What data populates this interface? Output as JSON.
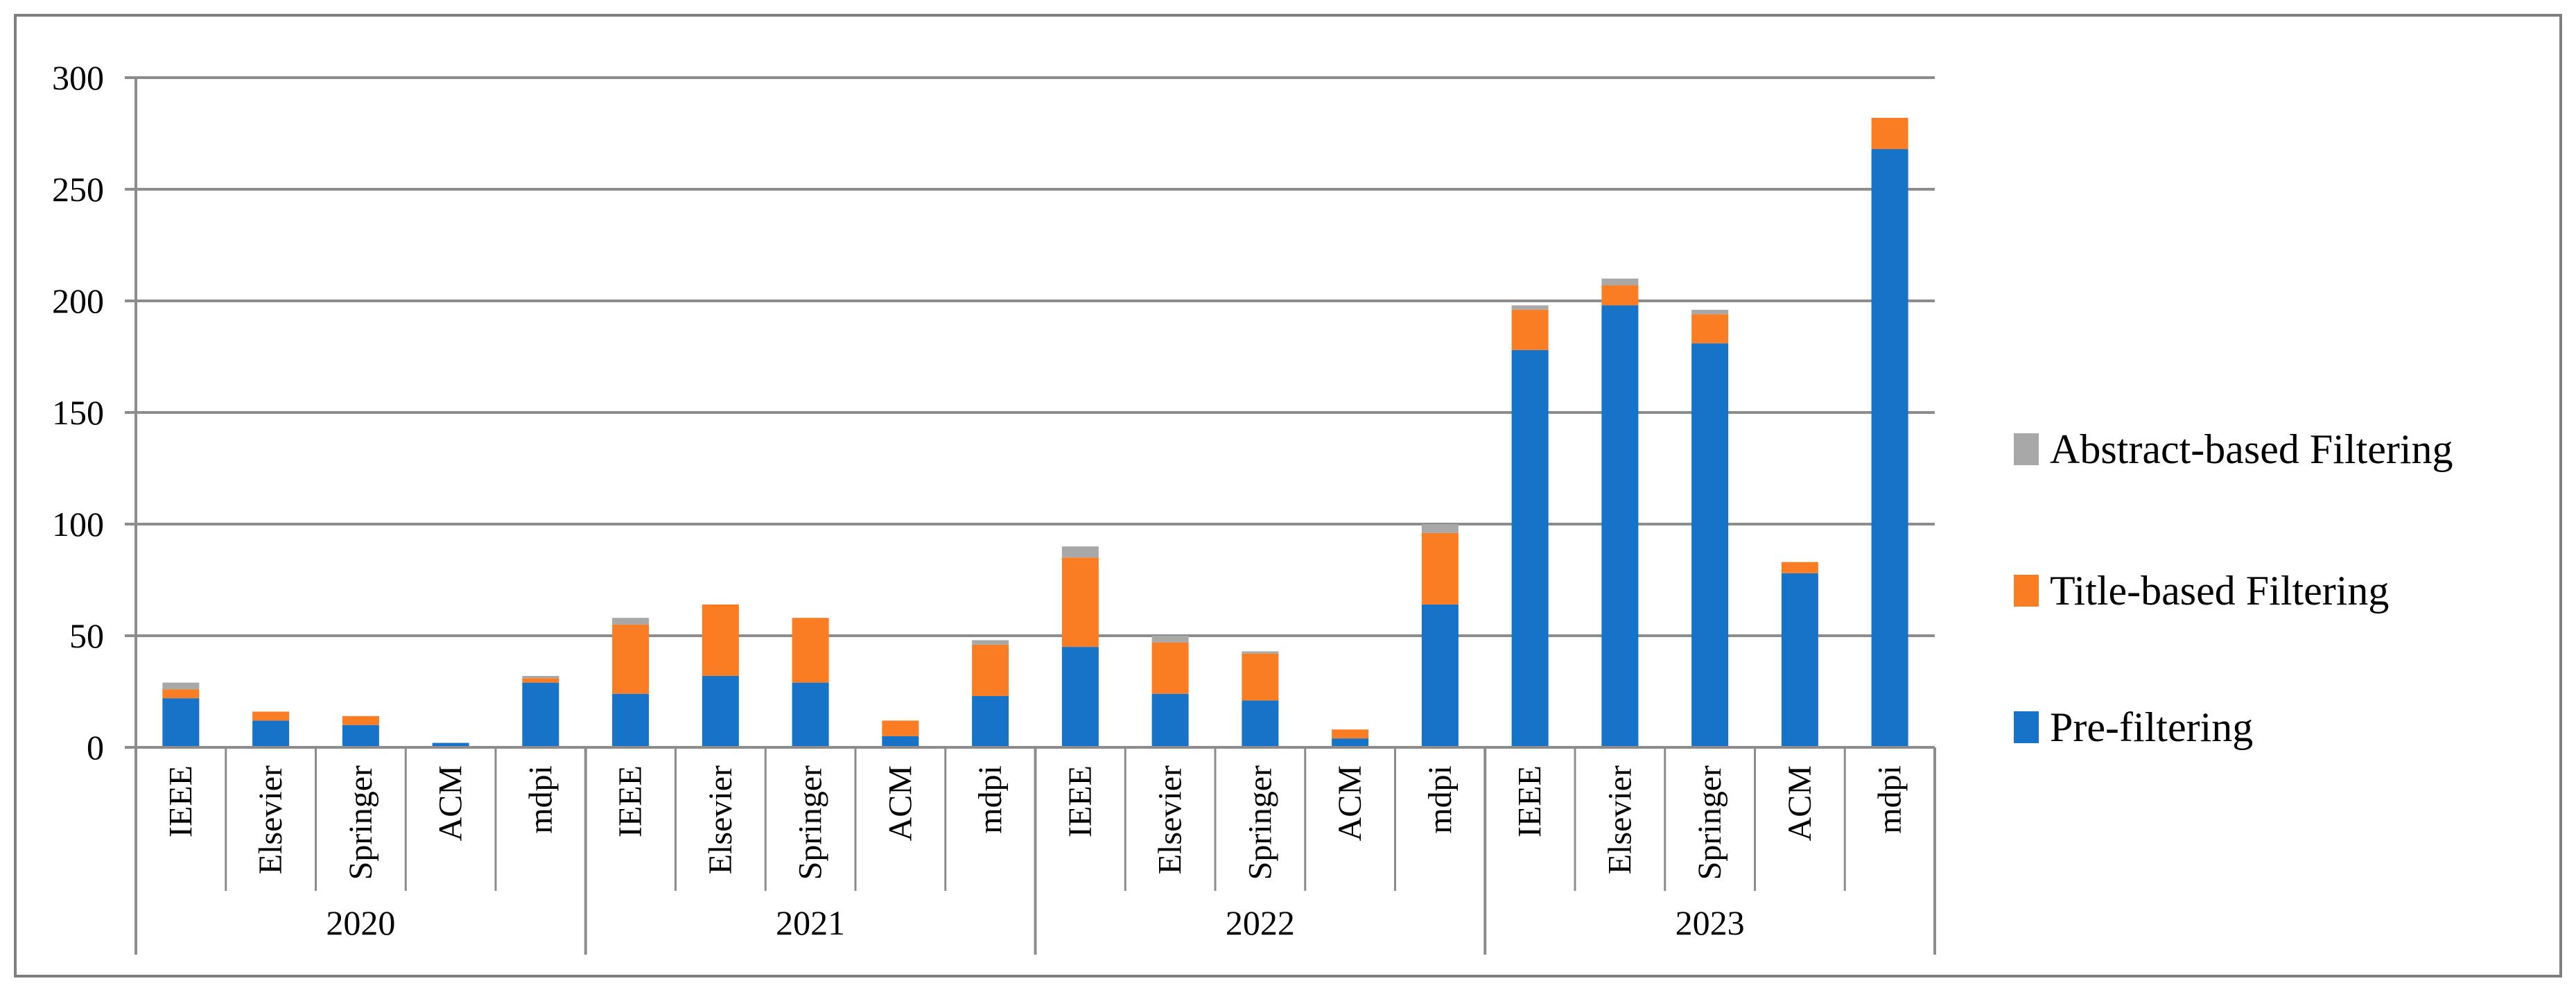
{
  "chart_data": {
    "type": "bar",
    "stacked": true,
    "title": "",
    "xlabel": "",
    "ylabel": "",
    "groups": [
      "2020",
      "2021",
      "2022",
      "2023"
    ],
    "categories": [
      "IEEE",
      "Elsevier",
      "Springer",
      "ACM",
      "mdpi"
    ],
    "ylim": [
      0,
      300
    ],
    "yticks": [
      0,
      50,
      100,
      150,
      200,
      250,
      300
    ],
    "grid": true,
    "legend_position": "right",
    "axis_color": "#8C8C8C",
    "border_color": "#7F7F7F",
    "text_color": "#000000",
    "series": [
      {
        "name": "Pre-filtering",
        "color": "#1673C8",
        "values": [
          [
            22,
            12,
            10,
            2,
            29
          ],
          [
            24,
            32,
            29,
            5,
            23
          ],
          [
            45,
            24,
            21,
            4,
            64
          ],
          [
            178,
            198,
            181,
            78,
            268
          ]
        ]
      },
      {
        "name": "Title-based Filtering",
        "color": "#FB7D23",
        "values": [
          [
            4,
            4,
            4,
            0,
            2
          ],
          [
            31,
            32,
            29,
            7,
            23
          ],
          [
            40,
            23,
            21,
            4,
            32
          ],
          [
            18,
            9,
            13,
            5,
            14
          ]
        ]
      },
      {
        "name": "Abstract-based Filtering",
        "color": "#A8A8A8",
        "values": [
          [
            3,
            0,
            0,
            0,
            1
          ],
          [
            3,
            0,
            0,
            0,
            2
          ],
          [
            5,
            3,
            1,
            0,
            4
          ],
          [
            2,
            3,
            2,
            0,
            0
          ]
        ]
      }
    ]
  },
  "legend": {
    "entries": [
      {
        "label": "Abstract-based Filtering",
        "color": "#A8A8A8"
      },
      {
        "label": "Title-based Filtering",
        "color": "#FB7D23"
      },
      {
        "label": "Pre-filtering",
        "color": "#1673C8"
      }
    ]
  }
}
